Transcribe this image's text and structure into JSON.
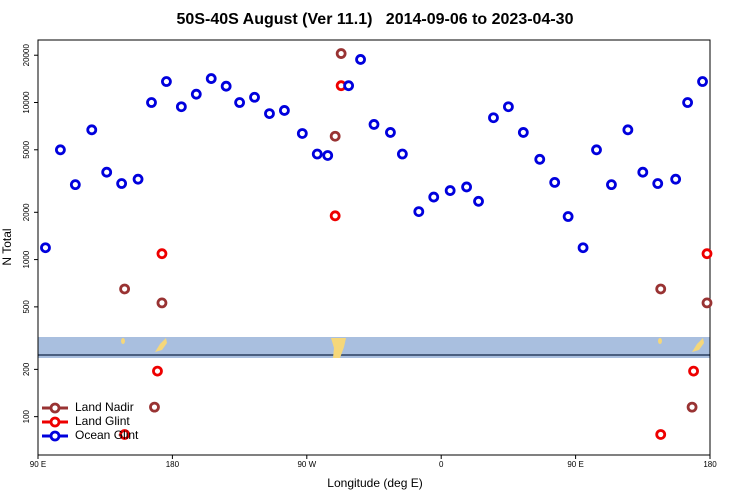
{
  "chart_data": {
    "type": "scatter",
    "title": "50S-40S August (Ver 11.1)   2014-09-06 to 2023-04-30",
    "x_label": "Longitude (deg E)",
    "y_label": "N Total",
    "log_y": true,
    "legend": "lower left",
    "xlim": [
      90,
      540
    ],
    "xticks": [
      {
        "value": 90,
        "label": "90 E"
      },
      180,
      {
        "value": 270,
        "label": "90 W"
      },
      {
        "value": 360,
        "label": "0"
      },
      {
        "value": 450,
        "label": "90 E"
      },
      {
        "value": 540,
        "label": "180"
      }
    ],
    "ylim": [
      57,
      25000
    ],
    "yticks": [
      100,
      200,
      500,
      1000,
      2000,
      5000,
      10000,
      20000
    ],
    "series": [
      {
        "name": "Land Nadir",
        "color": "#993333",
        "x": [
          148,
          173,
          289,
          293,
          507,
          538,
          168,
          528
        ],
        "values": [
          650,
          530,
          6100,
          20500,
          650,
          530,
          115,
          115
        ]
      },
      {
        "name": "Land Glint",
        "color": "#ee0000",
        "x": [
          173,
          293,
          289,
          170,
          148,
          538,
          529,
          507
        ],
        "values": [
          1090,
          12800,
          1900,
          195,
          77,
          1090,
          195,
          77
        ]
      },
      {
        "name": "Ocean Glint",
        "color": "#0000dd",
        "x": [
          95,
          105,
          115,
          126,
          136,
          146,
          157,
          166,
          176,
          186,
          196,
          206,
          216,
          225,
          235,
          245,
          255,
          267,
          277,
          284,
          298,
          306,
          315,
          326,
          334,
          345,
          355,
          366,
          377,
          385,
          395,
          405,
          415,
          426,
          436,
          445,
          455,
          464,
          474,
          485,
          495,
          505,
          517,
          525,
          535
        ],
        "values": [
          1190,
          5000,
          3000,
          6700,
          3600,
          3050,
          3250,
          10000,
          13600,
          9400,
          11300,
          14200,
          12700,
          10000,
          10800,
          8500,
          8900,
          6350,
          4700,
          4600,
          12800,
          18800,
          7250,
          6450,
          4700,
          2020,
          2500,
          2750,
          2900,
          2350,
          8000,
          9400,
          6450,
          4350,
          3100,
          1880,
          1190,
          5000,
          3000,
          6700,
          3600,
          3050,
          3250,
          10000,
          13600
        ]
      }
    ]
  }
}
